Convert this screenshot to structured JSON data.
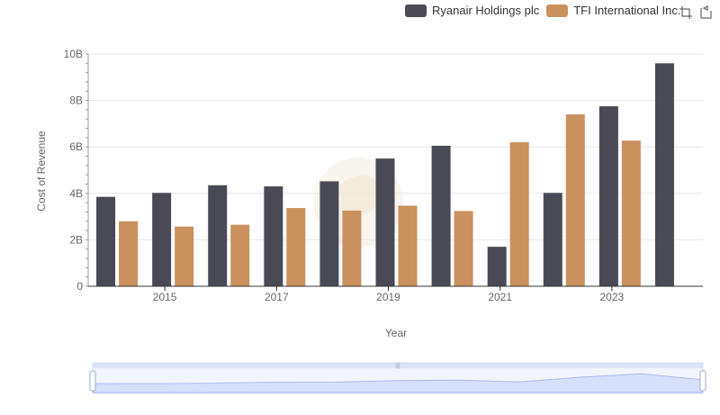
{
  "legend": {
    "items": [
      {
        "name": "Ryanair Holdings plc",
        "color": "#4a4a56"
      },
      {
        "name": "TFI International Inc.",
        "color": "#c9915e"
      }
    ]
  },
  "toolbox": {
    "icons": [
      "zoom-icon",
      "restore-icon"
    ]
  },
  "chart_data": {
    "type": "bar",
    "title": "",
    "xlabel": "Year",
    "ylabel": "Cost of Revenue",
    "x": [
      2014,
      2015,
      2016,
      2017,
      2018,
      2019,
      2020,
      2021,
      2022,
      2023,
      2024
    ],
    "x_tick_labels": [
      "2015",
      "2017",
      "2019",
      "2021",
      "2023"
    ],
    "y_tick_labels": [
      "0",
      "2B",
      "4B",
      "6B",
      "8B",
      "10B"
    ],
    "ylim": [
      0,
      10000000000
    ],
    "grid": true,
    "legend_position": "top-right",
    "series": [
      {
        "name": "Ryanair Holdings plc",
        "color": "#4a4a56",
        "values": [
          3850000000,
          4020000000,
          4350000000,
          4300000000,
          4520000000,
          5500000000,
          6050000000,
          1700000000,
          4020000000,
          7750000000,
          9600000000
        ]
      },
      {
        "name": "TFI International Inc.",
        "color": "#c9915e",
        "values": [
          2800000000,
          2570000000,
          2650000000,
          3370000000,
          3260000000,
          3470000000,
          3240000000,
          6200000000,
          7400000000,
          6270000000,
          null
        ]
      }
    ]
  }
}
